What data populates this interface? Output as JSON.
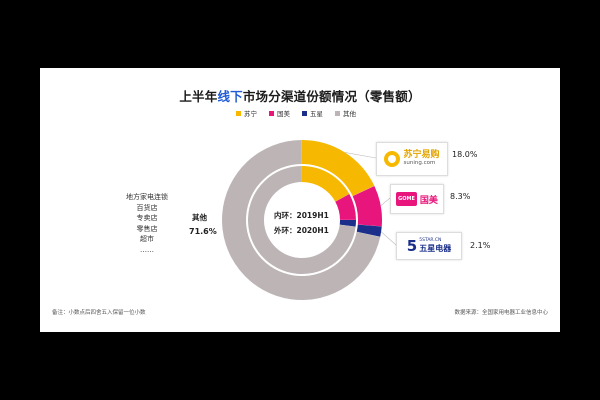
{
  "title_pre": "上半年",
  "title_hl": "线下",
  "title_post": "市场分渠道份额情况（零售额）",
  "legend": [
    {
      "name": "苏宁",
      "color": "#f6b800"
    },
    {
      "name": "国美",
      "color": "#e8167c"
    },
    {
      "name": "五星",
      "color": "#1b2f8a"
    },
    {
      "name": "其他",
      "color": "#bdb5b5"
    }
  ],
  "left_list": [
    "地方家电连锁",
    "百货店",
    "专卖店",
    "零售店",
    "超市",
    "……"
  ],
  "other_label": "其他",
  "other_pct": "71.6%",
  "inner_label": "内环：2019H1",
  "outer_label": "外环：2020H1",
  "suning": {
    "cn": "苏宁易购",
    "en": "suning.com",
    "pct": "18.0%"
  },
  "gome": {
    "logo": "GOME",
    "cn": "国美",
    "pct": "8.3%"
  },
  "wuxing": {
    "num": "5",
    "en": "5STAR.CN",
    "cn": "五星电器",
    "pct": "2.1%"
  },
  "note": "备注：小数点后四舍五入保留一位小数",
  "source": "数据来源：全国家用电器工业信息中心",
  "chart_data": {
    "type": "pie",
    "title": "上半年线下市场分渠道份额情况（零售额）",
    "categories": [
      "苏宁",
      "国美",
      "五星",
      "其他"
    ],
    "series": [
      {
        "name": "内环：2019H1",
        "values": [
          17.0,
          8.0,
          2.0,
          73.0
        ]
      },
      {
        "name": "外环：2020H1",
        "values": [
          18.0,
          8.3,
          2.1,
          71.6
        ]
      }
    ]
  }
}
